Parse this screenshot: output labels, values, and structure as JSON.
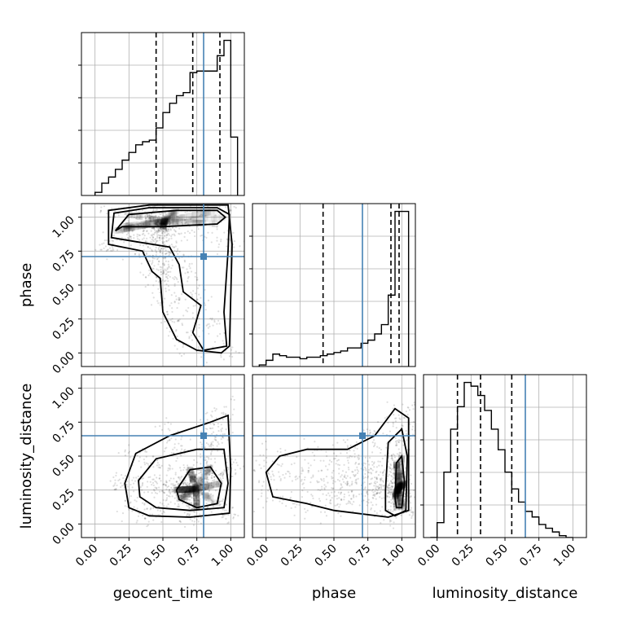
{
  "chart_data": {
    "type": "corner",
    "parameters": [
      "geocent_time",
      "phase",
      "luminosity_distance"
    ],
    "tick_labels": [
      "0.00",
      "0.25",
      "0.50",
      "0.75",
      "1.00"
    ],
    "range": [
      -0.1,
      1.1
    ],
    "grid": true,
    "truth_color": "#4682b4",
    "truths": {
      "geocent_time": 0.8,
      "phase": 0.71,
      "luminosity_distance": 0.65
    },
    "quantiles": {
      "geocent_time": [
        0.45,
        0.72,
        0.92
      ],
      "phase": [
        0.42,
        0.92,
        0.98
      ],
      "luminosity_distance": [
        0.15,
        0.32,
        0.55
      ]
    },
    "histograms": {
      "geocent_time": {
        "edges": [
          0.0,
          0.05,
          0.1,
          0.15,
          0.2,
          0.25,
          0.3,
          0.35,
          0.4,
          0.45,
          0.5,
          0.55,
          0.6,
          0.65,
          0.7,
          0.75,
          0.8,
          0.85,
          0.9,
          0.95,
          1.0,
          1.05
        ],
        "counts": [
          2,
          8,
          12,
          17,
          23,
          28,
          33,
          35,
          36,
          44,
          54,
          60,
          65,
          67,
          80,
          81,
          81,
          81,
          91,
          101,
          38
        ]
      },
      "phase": {
        "edges": [
          -0.05,
          0.0,
          0.05,
          0.1,
          0.15,
          0.2,
          0.25,
          0.3,
          0.35,
          0.4,
          0.45,
          0.5,
          0.55,
          0.6,
          0.65,
          0.7,
          0.75,
          0.8,
          0.85,
          0.9,
          0.95,
          1.0,
          1.05
        ],
        "counts": [
          1,
          4,
          8,
          7,
          6,
          6,
          5,
          6,
          6,
          7,
          8,
          9,
          10,
          12,
          12,
          15,
          17,
          21,
          27,
          46,
          100,
          100
        ]
      },
      "luminosity_distance": {
        "edges": [
          -0.05,
          0.0,
          0.05,
          0.1,
          0.15,
          0.2,
          0.25,
          0.3,
          0.35,
          0.4,
          0.45,
          0.5,
          0.55,
          0.6,
          0.65,
          0.7,
          0.75,
          0.8,
          0.85,
          0.9,
          0.95,
          1.0
        ],
        "counts": [
          0,
          8,
          35,
          58,
          70,
          83,
          81,
          76,
          68,
          58,
          47,
          35,
          26,
          19,
          14,
          11,
          7,
          5,
          3,
          1,
          0
        ]
      }
    },
    "panels_2d": [
      {
        "x": "geocent_time",
        "y": "phase",
        "contours": [
          [
            [
              0.15,
              0.9
            ],
            [
              0.25,
              1.02
            ],
            [
              0.6,
              1.05
            ],
            [
              0.9,
              1.05
            ],
            [
              0.96,
              1.0
            ],
            [
              0.9,
              0.95
            ],
            [
              0.5,
              0.93
            ],
            [
              0.2,
              0.93
            ],
            [
              0.15,
              0.9
            ]
          ],
          [
            [
              0.12,
              0.85
            ],
            [
              0.14,
              1.03
            ],
            [
              0.4,
              1.07
            ],
            [
              0.9,
              1.07
            ],
            [
              0.99,
              1.02
            ],
            [
              0.98,
              0.75
            ],
            [
              0.95,
              0.3
            ],
            [
              0.97,
              0.05
            ],
            [
              0.8,
              0.02
            ],
            [
              0.72,
              0.15
            ],
            [
              0.78,
              0.35
            ],
            [
              0.65,
              0.45
            ],
            [
              0.62,
              0.65
            ],
            [
              0.55,
              0.78
            ],
            [
              0.3,
              0.82
            ],
            [
              0.12,
              0.85
            ]
          ],
          [
            [
              0.1,
              0.8
            ],
            [
              0.1,
              1.05
            ],
            [
              0.4,
              1.09
            ],
            [
              0.98,
              1.09
            ],
            [
              1.01,
              0.8
            ],
            [
              0.99,
              0.05
            ],
            [
              0.93,
              0.0
            ],
            [
              0.75,
              0.02
            ],
            [
              0.6,
              0.1
            ],
            [
              0.5,
              0.3
            ],
            [
              0.48,
              0.55
            ],
            [
              0.42,
              0.6
            ],
            [
              0.35,
              0.75
            ],
            [
              0.1,
              0.8
            ]
          ]
        ]
      },
      {
        "x": "geocent_time",
        "y": "luminosity_distance",
        "contours": [
          [
            [
              0.6,
              0.25
            ],
            [
              0.7,
              0.4
            ],
            [
              0.85,
              0.42
            ],
            [
              0.93,
              0.3
            ],
            [
              0.9,
              0.15
            ],
            [
              0.75,
              0.12
            ],
            [
              0.62,
              0.18
            ],
            [
              0.6,
              0.25
            ]
          ],
          [
            [
              0.32,
              0.32
            ],
            [
              0.45,
              0.48
            ],
            [
              0.75,
              0.55
            ],
            [
              0.95,
              0.55
            ],
            [
              0.98,
              0.3
            ],
            [
              0.95,
              0.12
            ],
            [
              0.7,
              0.1
            ],
            [
              0.45,
              0.12
            ],
            [
              0.33,
              0.2
            ],
            [
              0.32,
              0.32
            ]
          ],
          [
            [
              0.22,
              0.3
            ],
            [
              0.3,
              0.52
            ],
            [
              0.55,
              0.65
            ],
            [
              0.85,
              0.75
            ],
            [
              0.98,
              0.8
            ],
            [
              1.0,
              0.4
            ],
            [
              0.99,
              0.08
            ],
            [
              0.7,
              0.05
            ],
            [
              0.4,
              0.06
            ],
            [
              0.25,
              0.12
            ],
            [
              0.22,
              0.3
            ]
          ]
        ]
      },
      {
        "x": "phase",
        "y": "luminosity_distance",
        "contours": [
          [
            [
              0.95,
              0.2
            ],
            [
              0.96,
              0.45
            ],
            [
              1.0,
              0.5
            ],
            [
              1.02,
              0.3
            ],
            [
              1.0,
              0.12
            ],
            [
              0.96,
              0.12
            ],
            [
              0.95,
              0.2
            ]
          ],
          [
            [
              0.88,
              0.25
            ],
            [
              0.9,
              0.6
            ],
            [
              1.0,
              0.7
            ],
            [
              1.04,
              0.5
            ],
            [
              1.03,
              0.1
            ],
            [
              0.95,
              0.06
            ],
            [
              0.88,
              0.1
            ],
            [
              0.88,
              0.25
            ]
          ],
          [
            [
              0.0,
              0.38
            ],
            [
              0.1,
              0.5
            ],
            [
              0.3,
              0.55
            ],
            [
              0.6,
              0.55
            ],
            [
              0.8,
              0.65
            ],
            [
              0.95,
              0.85
            ],
            [
              1.05,
              0.78
            ],
            [
              1.05,
              0.1
            ],
            [
              0.9,
              0.05
            ],
            [
              0.5,
              0.1
            ],
            [
              0.3,
              0.15
            ],
            [
              0.05,
              0.2
            ],
            [
              0.0,
              0.38
            ]
          ]
        ]
      }
    ]
  }
}
